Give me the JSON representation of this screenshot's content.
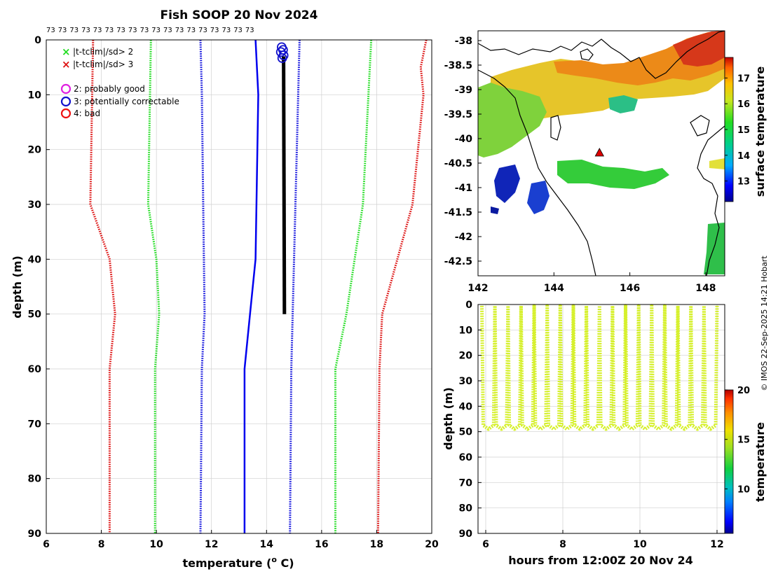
{
  "title": "Fish SOOP 20 Nov 2024",
  "count_label": "73",
  "count_repeat": 18,
  "credit": "© IMOS 22-Sep-2025 14:21 Hobart",
  "colors": {
    "clim2": "#22dd22",
    "clim3": "#dd1111",
    "std1": "#1111dd",
    "mean": "#0000ee",
    "profile": "#000000",
    "flag2": "#e020e0",
    "flag3": "#1111cc",
    "flag4": "#ee1111",
    "scatter": "#d6f02c",
    "marker": "#dd0000"
  },
  "legend": {
    "sd2": "|t-tclim|/sd> 2",
    "sd3": "|t-tclim|/sd> 3",
    "flag2": "2: probably good",
    "flag3": "3: potentially correctable",
    "flag4": "4: bad"
  },
  "chart_data": [
    {
      "type": "line",
      "name": "profile",
      "title": "Fish SOOP 20 Nov 2024",
      "xlabel": "temperature (o C)",
      "xlabel_main": "temperature (",
      "xlabel_sup": "o",
      "xlabel_end": " C)",
      "ylabel": "depth (m)",
      "xlim": [
        6,
        20
      ],
      "ylim": [
        90,
        0
      ],
      "xticks": [
        6,
        8,
        10,
        12,
        14,
        16,
        18,
        20
      ],
      "yticks": [
        0,
        10,
        20,
        30,
        40,
        50,
        60,
        70,
        80,
        90
      ],
      "grid": true,
      "series": [
        {
          "name": "clim -3sd",
          "color_key": "clim3",
          "style": "dotted",
          "depth": [
            0,
            30,
            40,
            50,
            60,
            90
          ],
          "temp": [
            7.7,
            7.6,
            8.3,
            8.5,
            8.3,
            8.3
          ]
        },
        {
          "name": "clim -2sd",
          "color_key": "clim2",
          "style": "dotted",
          "depth": [
            0,
            30,
            40,
            50,
            60,
            90
          ],
          "temp": [
            9.8,
            9.7,
            10.0,
            10.1,
            9.95,
            9.95
          ]
        },
        {
          "name": "clim -1sd",
          "color_key": "std1",
          "style": "dotted",
          "depth": [
            0,
            10,
            30,
            50,
            60,
            90
          ],
          "temp": [
            11.6,
            11.65,
            11.7,
            11.75,
            11.65,
            11.6
          ]
        },
        {
          "name": "clim mean",
          "color_key": "mean",
          "style": "solid",
          "depth": [
            0,
            10,
            40,
            50,
            60,
            90
          ],
          "temp": [
            13.6,
            13.7,
            13.6,
            13.4,
            13.2,
            13.2
          ]
        },
        {
          "name": "clim +1sd",
          "color_key": "std1",
          "style": "dotted",
          "depth": [
            0,
            60,
            90
          ],
          "temp": [
            15.2,
            14.9,
            14.85
          ]
        },
        {
          "name": "clim +2sd",
          "color_key": "clim2",
          "style": "dotted",
          "depth": [
            0,
            30,
            50,
            60,
            90
          ],
          "temp": [
            17.8,
            17.5,
            16.9,
            16.5,
            16.5
          ]
        },
        {
          "name": "clim +3sd",
          "color_key": "clim3",
          "style": "dotted",
          "depth": [
            0,
            5,
            10,
            30,
            50,
            60,
            90
          ],
          "temp": [
            19.8,
            19.6,
            19.7,
            19.3,
            18.2,
            18.1,
            18.05
          ]
        },
        {
          "name": "observed profile",
          "color_key": "profile",
          "style": "thick",
          "depth": [
            3,
            50
          ],
          "temp": [
            14.62,
            14.65
          ]
        }
      ],
      "flags": [
        {
          "flag": 3,
          "depth": 0.3,
          "temp": 14.55
        },
        {
          "flag": 3,
          "depth": 0.8,
          "temp": 14.6
        },
        {
          "flag": 3,
          "depth": 1.2,
          "temp": 14.52
        },
        {
          "flag": 3,
          "depth": 1.8,
          "temp": 14.62
        },
        {
          "flag": 3,
          "depth": 2.3,
          "temp": 14.57
        }
      ]
    },
    {
      "type": "heatmap",
      "name": "map",
      "colorbar_label": "surface temperature",
      "xlim": [
        142,
        148.5
      ],
      "ylim": [
        -42.8,
        -37.8
      ],
      "xticks": [
        142,
        144,
        146,
        148
      ],
      "yticks": [
        -38,
        -38.5,
        -39,
        -39.5,
        -40,
        -40.5,
        -41,
        -41.5,
        -42,
        -42.5
      ],
      "clim": [
        12.2,
        17.8
      ],
      "cticks": [
        13,
        14,
        15,
        16,
        17
      ],
      "marker": {
        "lon": 145.2,
        "lat": -40.3
      }
    },
    {
      "type": "scatter",
      "name": "timeseries",
      "xlabel": "hours from 12:00Z 20 Nov 24",
      "ylabel": "depth (m)",
      "colorbar_label": "temperature",
      "xlim": [
        5.8,
        12.2
      ],
      "ylim": [
        90,
        0
      ],
      "xticks": [
        6,
        8,
        10,
        12
      ],
      "yticks": [
        0,
        10,
        20,
        30,
        40,
        50,
        60,
        70,
        80,
        90
      ],
      "clim": [
        5.5,
        20
      ],
      "cticks": [
        10,
        15,
        20
      ],
      "profile_count": 18,
      "time_start": 5.9,
      "time_end": 12.0,
      "depth_max": 49,
      "temperature": 14.6
    }
  ]
}
